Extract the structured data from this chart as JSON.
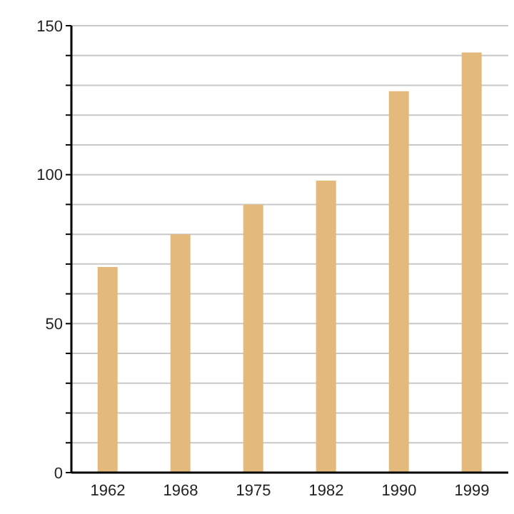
{
  "chart_data": {
    "type": "bar",
    "categories": [
      "1962",
      "1968",
      "1975",
      "1982",
      "1990",
      "1999"
    ],
    "values": [
      69,
      80,
      90,
      98,
      128,
      141
    ],
    "color": "#e3b97c",
    "ylim": [
      0,
      150
    ],
    "yticks": [
      0,
      {
        "value": 10,
        "label": null
      },
      {
        "value": 20,
        "label": null
      },
      {
        "value": 30,
        "label": null
      },
      {
        "value": 40,
        "label": null
      },
      50,
      {
        "value": 60,
        "label": null
      },
      {
        "value": 70,
        "label": null
      },
      {
        "value": 80,
        "label": null
      },
      {
        "value": 90,
        "label": null
      },
      100,
      {
        "value": 110,
        "label": null
      },
      {
        "value": 120,
        "label": null
      },
      {
        "value": 130,
        "label": null
      },
      {
        "value": 140,
        "label": null
      },
      150
    ],
    "grid": "y"
  }
}
